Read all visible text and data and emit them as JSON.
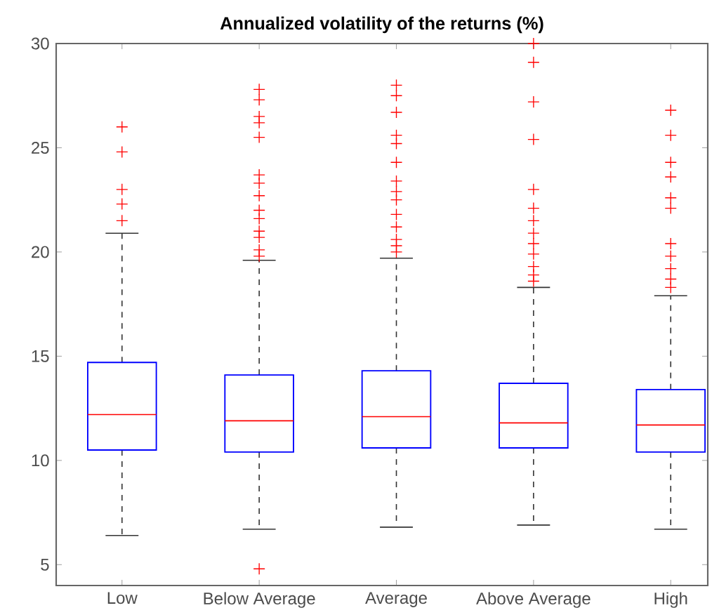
{
  "chart_data": {
    "type": "box",
    "title": "Annualized volatility of the returns (%)",
    "categories": [
      "Low",
      "Below Average",
      "Average",
      "Above Average",
      "High"
    ],
    "series": [
      {
        "color": "#0000ff",
        "boxes": [
          {
            "low": 6.4,
            "q1": 10.5,
            "median": 12.2,
            "q3": 14.7,
            "high": 20.9,
            "outliers": [
              26.0,
              24.8,
              23.0,
              22.3,
              21.5
            ]
          },
          {
            "low": 6.7,
            "q1": 10.4,
            "median": 11.9,
            "q3": 14.1,
            "high": 19.6,
            "outliers": [
              27.8,
              27.3,
              26.5,
              26.2,
              25.5,
              23.7,
              23.3,
              22.7,
              22.0,
              21.6,
              21.0,
              20.7,
              20.1,
              19.8,
              4.8
            ]
          },
          {
            "low": 6.8,
            "q1": 10.6,
            "median": 12.1,
            "q3": 14.3,
            "high": 19.7,
            "outliers": [
              28.0,
              27.5,
              26.7,
              25.6,
              25.2,
              24.3,
              23.4,
              22.9,
              22.5,
              21.8,
              21.2,
              20.6,
              20.3,
              20.0
            ]
          },
          {
            "low": 6.9,
            "q1": 10.6,
            "median": 11.8,
            "q3": 13.7,
            "high": 18.3,
            "outliers": [
              30.0,
              29.1,
              27.2,
              25.4,
              23.0,
              22.1,
              21.5,
              20.9,
              20.4,
              19.9,
              19.3,
              18.9,
              18.6
            ]
          },
          {
            "low": 6.7,
            "q1": 10.4,
            "median": 11.7,
            "q3": 13.4,
            "high": 17.9,
            "outliers": [
              26.8,
              25.6,
              24.3,
              23.6,
              22.6,
              22.1,
              20.4,
              19.8,
              19.2,
              18.7,
              18.3
            ]
          }
        ]
      }
    ],
    "ylim": [
      4,
      30
    ],
    "yticks": [
      5,
      10,
      15,
      20,
      25,
      30
    ],
    "marker": "cross"
  }
}
